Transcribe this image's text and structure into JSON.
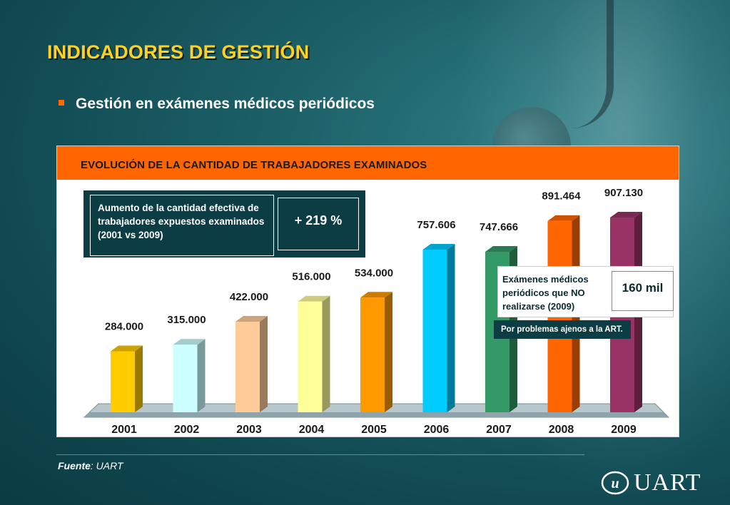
{
  "page": {
    "title": "INDICADORES DE GESTIÓN",
    "subtitle": "Gestión en exámenes médicos periódicos",
    "source_label": "Fuente",
    "source_value": ": UART",
    "logo_text": "UART",
    "logo_mark": "u"
  },
  "colors": {
    "title": "#ffd21f",
    "header": "#ff6600",
    "bullet": "#ff6a00"
  },
  "callouts": {
    "increase_text": "Aumento de la cantidad efectiva de trabajadores expuestos examinados (2001 vs 2009)",
    "increase_value": "+ 219 %",
    "not_done_text": "Exámenes médicos periódicos que NO realizarse (2009)",
    "not_done_value": "160 mil",
    "reason": "Por problemas ajenos a la ART."
  },
  "chart_data": {
    "type": "bar",
    "title": "EVOLUCIÓN DE LA CANTIDAD DE TRABAJADORES EXAMINADOS",
    "xlabel": "",
    "ylabel": "",
    "ylim": [
      0,
      1000000
    ],
    "grid": false,
    "categories": [
      "2001",
      "2002",
      "2003",
      "2004",
      "2005",
      "2006",
      "2007",
      "2008",
      "2009"
    ],
    "values": [
      284000,
      315000,
      422000,
      516000,
      534000,
      757606,
      747666,
      891464,
      907130
    ],
    "value_labels": [
      "284.000",
      "315.000",
      "422.000",
      "516.000",
      "534.000",
      "757.606",
      "747.666",
      "891.464",
      "907.130"
    ],
    "bar_colors": [
      "#ffcc00",
      "#ccffff",
      "#ffcc99",
      "#ffff99",
      "#ff9900",
      "#00ccff",
      "#339966",
      "#ff6600",
      "#993366"
    ]
  }
}
